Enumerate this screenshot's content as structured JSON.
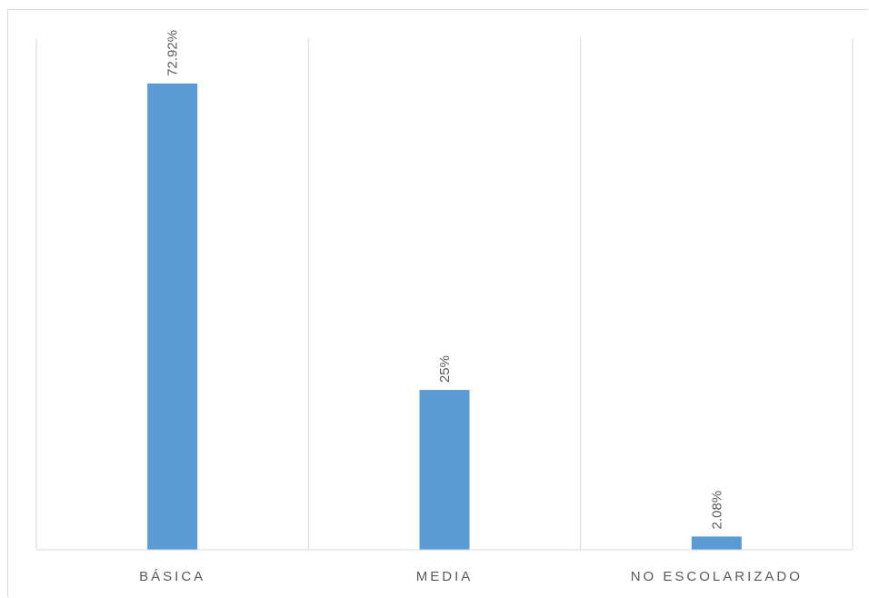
{
  "chart_data": {
    "type": "bar",
    "categories": [
      "BÁSICA",
      "MEDIA",
      "NO ESCOLARIZADO"
    ],
    "values": [
      72.92,
      25,
      2.08
    ],
    "data_labels": [
      "72.92%",
      "25%",
      "2.08%"
    ],
    "ylim": [
      0,
      80
    ],
    "grid": "vertical category separators",
    "legend": "none",
    "bar_color": "#5b9bd5"
  }
}
